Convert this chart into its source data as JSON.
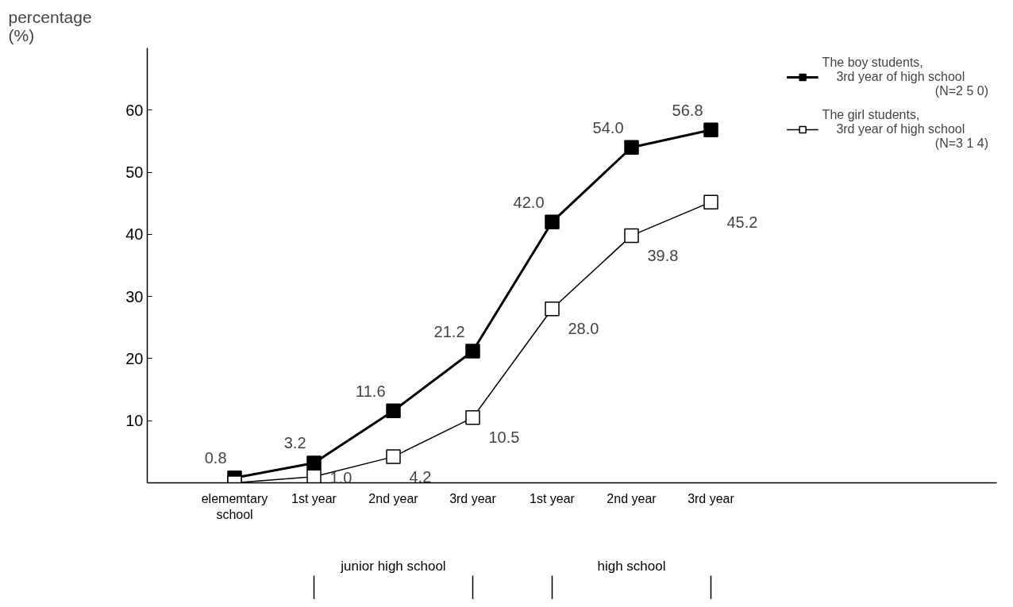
{
  "chart_data": {
    "type": "line",
    "ylabel": "percentage\n(%)",
    "categories": [
      "elememtary\nschool",
      "1st year",
      "2nd year",
      "3rd year",
      "1st year",
      "2nd year",
      "3rd year"
    ],
    "series": [
      {
        "name": "The boy students,\n    3rd year of high school\n                                (N=2 5 0)",
        "color": "#000000",
        "values": [
          0.8,
          3.2,
          11.6,
          21.2,
          42.0,
          54.0,
          56.8
        ],
        "value_labels": [
          "0.8",
          "3.2",
          "11.6",
          "21.2",
          "42.0",
          "54.0",
          "56.8"
        ]
      },
      {
        "name": "The girl students,\n    3rd year of high school\n                                (N=3 1 4)",
        "color": "#000000",
        "values": [
          0,
          1.0,
          4.2,
          10.5,
          28.0,
          39.8,
          45.2
        ],
        "value_labels": [
          null,
          "1.0",
          "4.2",
          "10.5",
          "28.0",
          "39.8",
          "45.2"
        ]
      }
    ],
    "ylim": [
      0,
      70
    ],
    "yticks": [
      10,
      20,
      30,
      40,
      50,
      60
    ],
    "marker": "square",
    "line_style": "solid",
    "grid": false,
    "legend": "top right",
    "annotations": [
      "junior high school",
      "high school"
    ]
  }
}
